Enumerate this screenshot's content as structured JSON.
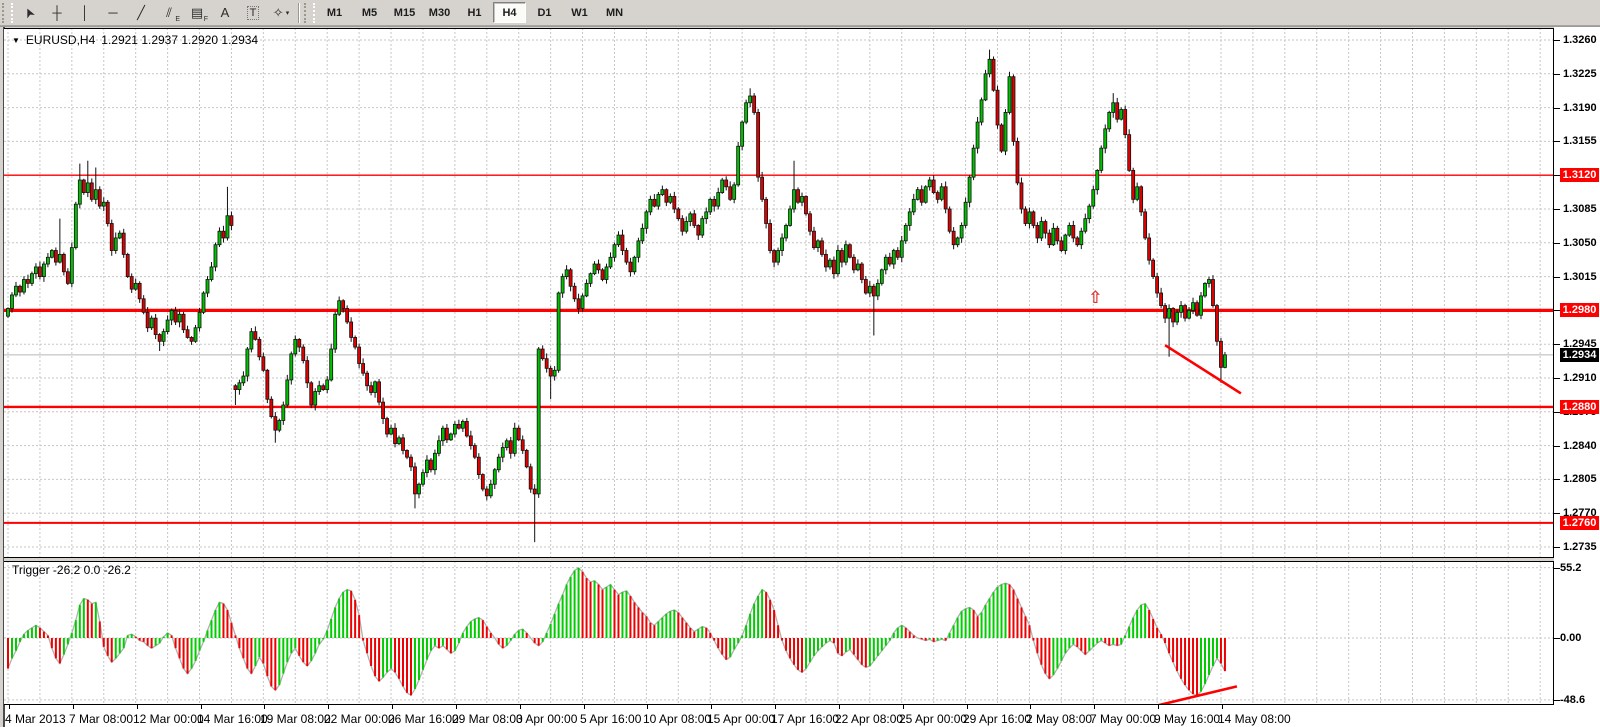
{
  "toolbar": {
    "tools": [
      {
        "name": "cursor",
        "glyph": "➤",
        "rot": -115
      },
      {
        "name": "crosshair",
        "glyph": "┼",
        "rot": 0
      },
      {
        "name": "vertical-line",
        "glyph": "│",
        "rot": 0
      },
      {
        "name": "horizontal-line",
        "glyph": "─",
        "rot": 0
      },
      {
        "name": "trendline",
        "glyph": "╱",
        "rot": 0
      },
      {
        "name": "equidistant-channel",
        "glyph": "⫽",
        "sub": "E",
        "rot": 0
      },
      {
        "name": "fibonacci-retracement",
        "glyph": "▤",
        "sub": "F",
        "rot": 0
      },
      {
        "name": "text",
        "glyph": "A",
        "rot": 0
      },
      {
        "name": "text-label",
        "glyph": "T",
        "rot": 0
      },
      {
        "name": "arrows-palette",
        "glyph": "✧",
        "caret": "▾",
        "rot": 0
      }
    ],
    "timeframes": [
      "M1",
      "M5",
      "M15",
      "M30",
      "H1",
      "H4",
      "D1",
      "W1",
      "MN"
    ],
    "active_timeframe": "H4"
  },
  "chart": {
    "symbol_period": "EURUSD,H4",
    "ohlc_text": "1.2921 1.2937 1.2920 1.2934",
    "open": "1.2921",
    "high": "1.2937",
    "low": "1.2920",
    "close": "1.2934",
    "current_price": 1.2934,
    "current_price_label": "1.2934",
    "dropdown_triangle": "▼",
    "price_axis_ticks": [
      {
        "label": "1.3260",
        "price": 1.326
      },
      {
        "label": "1.3225",
        "price": 1.3225
      },
      {
        "label": "1.3190",
        "price": 1.319
      },
      {
        "label": "1.3155",
        "price": 1.3155
      },
      {
        "label": "1.3120",
        "price": 1.312
      },
      {
        "label": "1.3085",
        "price": 1.3085
      },
      {
        "label": "1.3050",
        "price": 1.305
      },
      {
        "label": "1.3015",
        "price": 1.3015
      },
      {
        "label": "1.2980",
        "price": 1.298
      },
      {
        "label": "1.2945",
        "price": 1.2945
      },
      {
        "label": "1.2910",
        "price": 1.291
      },
      {
        "label": "1.2875",
        "price": 1.2875
      },
      {
        "label": "1.2840",
        "price": 1.284
      },
      {
        "label": "1.2805",
        "price": 1.2805
      },
      {
        "label": "1.2770",
        "price": 1.277
      },
      {
        "label": "1.2735",
        "price": 1.2735
      }
    ],
    "red_levels": [
      {
        "price": 1.312,
        "label": "1.3120",
        "weight": 1.4
      },
      {
        "price": 1.298,
        "label": "1.2980",
        "weight": 3.2
      },
      {
        "price": 1.288,
        "label": "1.2880",
        "weight": 2.4
      },
      {
        "price": 1.276,
        "label": "1.2760",
        "weight": 2.0
      }
    ],
    "line_color": "#fe0000",
    "bull_color": "#00c000",
    "bear_color": "#e00000",
    "outline_color": "#111111",
    "trendline": {
      "from": {
        "bar": 290,
        "price": 1.2944
      },
      "to": {
        "bar": 309,
        "price": 1.2894
      }
    },
    "arrow_marker": {
      "bar": 272.5,
      "price": 1.2993,
      "glyph": "⇧"
    },
    "candle_closes": [
      1.2982,
      1.2996,
      1.3005,
      1.2999,
      1.3012,
      1.3008,
      1.3018,
      1.3025,
      1.3015,
      1.3028,
      1.3035,
      1.3042,
      1.303,
      1.3038,
      1.302,
      1.3008,
      1.3045,
      1.309,
      1.3115,
      1.3102,
      1.3112,
      1.3095,
      1.3105,
      1.3088,
      1.3092,
      1.307,
      1.3042,
      1.3055,
      1.306,
      1.3038,
      1.3015,
      1.3002,
      1.3008,
      1.2992,
      1.2978,
      1.2962,
      1.2972,
      1.2955,
      1.2948,
      1.2958,
      1.297,
      1.298,
      1.2968,
      1.2976,
      1.296,
      1.2952,
      1.2948,
      1.2962,
      1.2978,
      1.2998,
      1.3012,
      1.3025,
      1.3048,
      1.3062,
      1.3055,
      1.3078,
      1.3068,
      1.2898,
      1.2905,
      1.2912,
      1.294,
      1.2958,
      1.295,
      1.2932,
      1.2918,
      1.2888,
      1.287,
      1.2856,
      1.2866,
      1.2882,
      1.2908,
      1.2935,
      1.295,
      1.2942,
      1.2928,
      1.2905,
      1.2882,
      1.2896,
      1.2902,
      1.2898,
      1.2908,
      1.294,
      1.2976,
      1.299,
      1.2982,
      1.2968,
      1.2952,
      1.2942,
      1.2925,
      1.2915,
      1.2902,
      1.2895,
      1.2906,
      1.2885,
      1.2868,
      1.2852,
      1.2858,
      1.2842,
      1.2848,
      1.2835,
      1.2828,
      1.2818,
      1.279,
      1.28,
      1.2812,
      1.2825,
      1.2815,
      1.2832,
      1.2845,
      1.2858,
      1.2846,
      1.2852,
      1.2862,
      1.2858,
      1.2865,
      1.285,
      1.284,
      1.2828,
      1.281,
      1.2795,
      1.2788,
      1.28,
      1.2815,
      1.2828,
      1.2838,
      1.2845,
      1.2832,
      1.2858,
      1.2846,
      1.2835,
      1.2818,
      1.2795,
      1.279,
      1.294,
      1.293,
      1.292,
      1.2912,
      1.2918,
      1.2998,
      1.3015,
      1.3022,
      1.3005,
      1.2992,
      1.2982,
      1.2995,
      1.3008,
      1.3018,
      1.3028,
      1.3022,
      1.3012,
      1.3025,
      1.3035,
      1.3048,
      1.3058,
      1.3042,
      1.303,
      1.302,
      1.3035,
      1.3052,
      1.3065,
      1.3082,
      1.3095,
      1.3088,
      1.31,
      1.3105,
      1.3092,
      1.3098,
      1.3085,
      1.3075,
      1.3062,
      1.3072,
      1.308,
      1.3068,
      1.3058,
      1.3075,
      1.3082,
      1.3095,
      1.3088,
      1.3102,
      1.3115,
      1.3108,
      1.3095,
      1.311,
      1.315,
      1.3175,
      1.3195,
      1.3202,
      1.3185,
      1.3118,
      1.3095,
      1.307,
      1.3042,
      1.303,
      1.3042,
      1.3055,
      1.3068,
      1.3085,
      1.3105,
      1.3092,
      1.3098,
      1.308,
      1.3062,
      1.3045,
      1.3052,
      1.3038,
      1.3025,
      1.3032,
      1.3018,
      1.3042,
      1.303,
      1.3048,
      1.3035,
      1.3022,
      1.3028,
      1.3012,
      1.2998,
      1.3005,
      1.2995,
      1.3008,
      1.3022,
      1.3035,
      1.3028,
      1.3042,
      1.3035,
      1.3052,
      1.3068,
      1.3082,
      1.3095,
      1.3105,
      1.3092,
      1.3108,
      1.3115,
      1.3102,
      1.3095,
      1.3108,
      1.3085,
      1.3062,
      1.3048,
      1.3055,
      1.3068,
      1.3092,
      1.3118,
      1.3148,
      1.3175,
      1.3198,
      1.3225,
      1.324,
      1.3208,
      1.3172,
      1.3145,
      1.3185,
      1.3222,
      1.3155,
      1.3112,
      1.3085,
      1.307,
      1.3082,
      1.3068,
      1.3055,
      1.3072,
      1.306,
      1.3048,
      1.3065,
      1.3052,
      1.3042,
      1.3058,
      1.3068,
      1.3055,
      1.3048,
      1.3062,
      1.3075,
      1.3088,
      1.3105,
      1.3125,
      1.3148,
      1.3168,
      1.3185,
      1.3195,
      1.3178,
      1.3188,
      1.3162,
      1.3125,
      1.3095,
      1.3108,
      1.3082,
      1.3055,
      1.3032,
      1.3015,
      1.2998,
      1.2985,
      1.2972,
      1.2982,
      1.2968,
      1.2978,
      1.2985,
      1.2972,
      1.298,
      1.2988,
      1.2975,
      1.2995,
      1.3008,
      1.3012,
      1.2985,
      1.2948,
      1.2921,
      1.2934
    ],
    "open_overrides": {
      "57": 1.2902
    },
    "high_overrides": {
      "13": 1.3075,
      "18": 1.3132,
      "20": 1.3135,
      "22": 1.3128,
      "55": 1.3108,
      "186": 1.321,
      "187": 1.3205,
      "197": 1.3135,
      "246": 1.325,
      "277": 1.3205,
      "305": 1.2937
    },
    "low_overrides": {
      "38": 1.2938,
      "57": 1.2882,
      "67": 1.2843,
      "102": 1.2775,
      "132": 1.274,
      "136": 1.2888,
      "217": 1.2954,
      "291": 1.2932,
      "304": 1.2905,
      "305": 1.292
    }
  },
  "indicator": {
    "name": "Trigger",
    "label": "Trigger -26.2 0.0 -26.2",
    "scale_labels": [
      {
        "label": "55.2",
        "value": 55.2
      },
      {
        "label": "0.00",
        "value": 0
      },
      {
        "label": "-48.6",
        "value": -48.6
      }
    ],
    "up_color": "#00cc00",
    "down_color": "#ee0000",
    "signal_color": "#b0b0b0",
    "trendline": {
      "from": {
        "bar": 288,
        "value": -53
      },
      "to": {
        "bar": 308,
        "value": -38
      }
    },
    "values": [
      -24,
      -16,
      -10,
      -3,
      3,
      6,
      8,
      10,
      8,
      5,
      2,
      -8,
      -16,
      -20,
      -13,
      -5,
      4,
      14,
      26,
      31,
      30,
      27,
      28,
      13,
      -7,
      -14,
      -19,
      -16,
      -12,
      -8,
      2,
      3,
      1,
      -2,
      -3,
      -6,
      -8,
      -6,
      -4,
      1,
      4,
      2,
      -8,
      -16,
      -24,
      -28,
      -24,
      -18,
      -10,
      -3,
      6,
      14,
      22,
      28,
      27,
      22,
      12,
      2,
      -8,
      -16,
      -24,
      -28,
      -22,
      -15,
      -20,
      -30,
      -38,
      -41,
      -37,
      -28,
      -19,
      -12,
      -8,
      -14,
      -19,
      -22,
      -18,
      -12,
      -5,
      -1,
      6,
      15,
      24,
      31,
      36,
      38,
      37,
      30,
      18,
      -2,
      -12,
      -22,
      -30,
      -34,
      -31,
      -27,
      -24,
      -27,
      -32,
      -38,
      -43,
      -45,
      -40,
      -33,
      -25,
      -17,
      -10,
      -6,
      -8,
      -6,
      -9,
      -12,
      -10,
      -4,
      4,
      9,
      13,
      15,
      16,
      14,
      9,
      4,
      0,
      -5,
      -8,
      -6,
      -2,
      3,
      6,
      7,
      4,
      0,
      -4,
      -6,
      -3,
      4,
      11,
      19,
      27,
      34,
      42,
      48,
      53,
      55,
      52,
      47,
      44,
      45,
      42,
      38,
      40,
      42,
      38,
      34,
      36,
      37,
      33,
      28,
      24,
      20,
      17,
      12,
      10,
      13,
      16,
      19,
      21,
      22,
      20,
      16,
      12,
      8,
      5,
      7,
      9,
      8,
      4,
      -2,
      -8,
      -13,
      -17,
      -15,
      -9,
      -4,
      2,
      10,
      19,
      27,
      33,
      38,
      36,
      30,
      22,
      10,
      -2,
      -10,
      -16,
      -21,
      -25,
      -27,
      -24,
      -19,
      -14,
      -10,
      -7,
      -4,
      -2,
      -4,
      -12,
      -14,
      -11,
      -9,
      -13,
      -17,
      -21,
      -23,
      -22,
      -18,
      -14,
      -10,
      -6,
      -2,
      4,
      8,
      10,
      8,
      5,
      2,
      0,
      -1,
      -2,
      -1,
      -3,
      -2,
      -1,
      -2,
      4,
      10,
      16,
      21,
      23,
      24,
      22,
      17,
      20,
      26,
      31,
      36,
      40,
      42,
      43,
      42,
      38,
      31,
      24,
      17,
      10,
      -2,
      -12,
      -21,
      -28,
      -32,
      -29,
      -24,
      -18,
      -12,
      -8,
      -5,
      -7,
      -10,
      -13,
      -10,
      -7,
      -4,
      -2,
      -4,
      -6,
      -5,
      -6,
      -5,
      2,
      9,
      16,
      22,
      26,
      27,
      22,
      15,
      8,
      3,
      -4,
      -12,
      -19,
      -26,
      -32,
      -37,
      -41,
      -44,
      -45,
      -42,
      -36,
      -29,
      -22,
      -16,
      -20,
      -26
    ]
  },
  "date_axis": {
    "labels": [
      "4 Mar 2013",
      "7 Mar 08:00",
      "12 Mar 00:00",
      "14 Mar 16:00",
      "19 Mar 08:00",
      "22 Mar 00:00",
      "26 Mar 16:00",
      "29 Mar 08:00",
      "3 Apr 00:00",
      "5 Apr 16:00",
      "10 Apr 08:00",
      "15 Apr 00:00",
      "17 Apr 16:00",
      "22 Apr 08:00",
      "25 Apr 00:00",
      "29 Apr 16:00",
      "2 May 08:00",
      "7 May 00:00",
      "9 May 16:00",
      "14 May 08:00"
    ]
  },
  "colors": {
    "window_bg": "#d6d3ce",
    "plot_bg": "#ffffff",
    "grid": "#c6c6c6",
    "current_price_line": "#b8b8b8",
    "red_line": "#fe0000"
  }
}
